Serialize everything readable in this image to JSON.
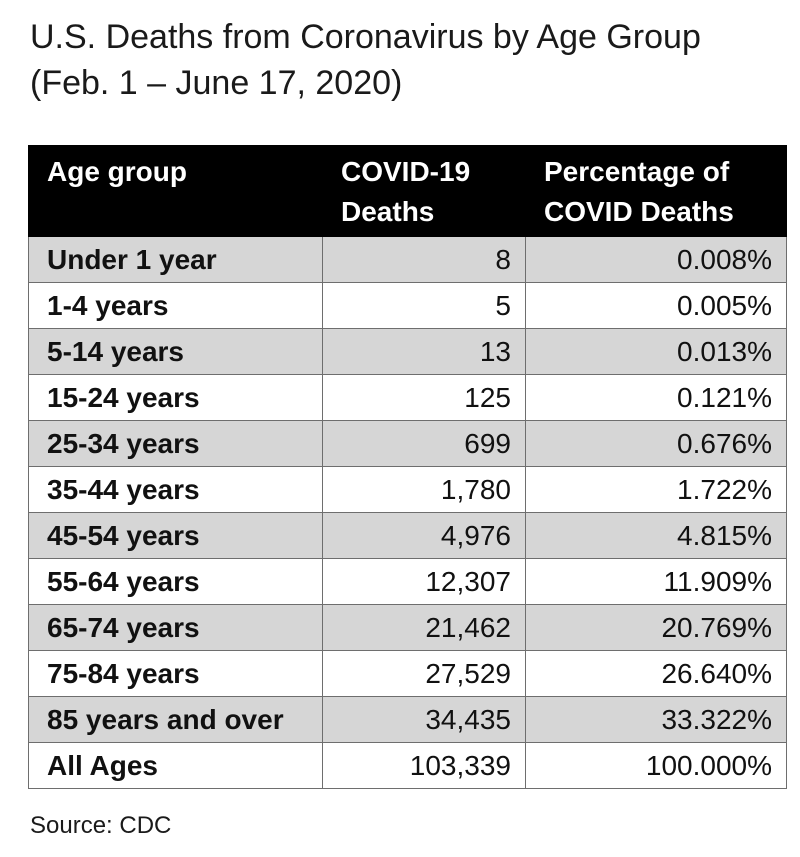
{
  "title_line1": "U.S. Deaths from Coronavirus by Age Group",
  "title_line2": "(Feb. 1 – June 17, 2020)",
  "source": "Source: CDC",
  "colors": {
    "header_bg": "#000000",
    "header_text": "#ffffff",
    "row_shade": "#d6d6d6",
    "border": "#6e6e6e"
  },
  "chart_data": {
    "type": "table",
    "title": "U.S. Deaths from Coronavirus by Age Group (Feb. 1 – June 17, 2020)",
    "columns": [
      {
        "lines": [
          "Age group"
        ]
      },
      {
        "lines": [
          "COVID-19",
          "Deaths"
        ]
      },
      {
        "lines": [
          "Percentage of",
          "COVID Deaths"
        ]
      }
    ],
    "rows": [
      {
        "age": "Under 1 year",
        "deaths": "8",
        "pct": "0.008%",
        "shaded": true
      },
      {
        "age": "1-4 years",
        "deaths": "5",
        "pct": "0.005%",
        "shaded": false
      },
      {
        "age": "5-14 years",
        "deaths": "13",
        "pct": "0.013%",
        "shaded": true
      },
      {
        "age": "15-24 years",
        "deaths": "125",
        "pct": "0.121%",
        "shaded": false
      },
      {
        "age": "25-34 years",
        "deaths": "699",
        "pct": "0.676%",
        "shaded": true
      },
      {
        "age": "35-44 years",
        "deaths": "1,780",
        "pct": "1.722%",
        "shaded": false
      },
      {
        "age": "45-54 years",
        "deaths": "4,976",
        "pct": "4.815%",
        "shaded": true
      },
      {
        "age": "55-64 years",
        "deaths": "12,307",
        "pct": "11.909%",
        "shaded": false
      },
      {
        "age": "65-74 years",
        "deaths": "21,462",
        "pct": "20.769%",
        "shaded": true
      },
      {
        "age": "75-84 years",
        "deaths": "27,529",
        "pct": "26.640%",
        "shaded": false
      },
      {
        "age": "85 years and over",
        "deaths": "34,435",
        "pct": "33.322%",
        "shaded": true
      },
      {
        "age": "All Ages",
        "deaths": "103,339",
        "pct": "100.000%",
        "shaded": false
      }
    ]
  }
}
